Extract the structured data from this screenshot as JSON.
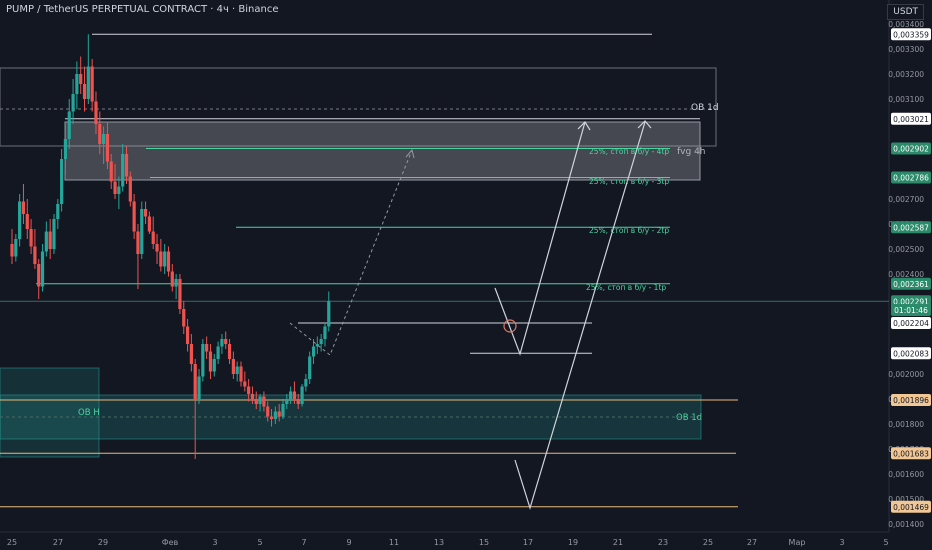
{
  "header": {
    "title": "PUMP / TetherUS PERPETUAL CONTRACT · 4ч · Binance",
    "currency_button": "USDT"
  },
  "colors": {
    "background": "#131722",
    "up": "#26a69a",
    "down": "#ef5350",
    "tp_line": "#4cd4a0",
    "level_orange": "#e8b97a",
    "white": "#d1d4dc",
    "zone_green": "#1e5c4c",
    "zone_grey": "#8a8d96"
  },
  "chart_data": {
    "type": "candlestick",
    "title": "PUMP / TetherUS PERPETUAL CONTRACT · 4ч · Binance",
    "x_tick_labels": [
      "25",
      "27",
      "29",
      "Фев",
      "3",
      "5",
      "7",
      "9",
      "11",
      "13",
      "15",
      "17",
      "19",
      "21",
      "23",
      "25",
      "27",
      "Мар",
      "3",
      "5"
    ],
    "y_axis_ticks": [
      "0,003400",
      "0,003300",
      "0,003200",
      "0,003100",
      "0,002700",
      "0,002600",
      "0,002500",
      "0,002400",
      "0,002000",
      "0,001900",
      "0,001800",
      "0,001700",
      "0,001600",
      "0,001500",
      "0,001400"
    ],
    "ylim": [
      0.00138,
      0.00342
    ],
    "price_labels": [
      {
        "text": "0,003359",
        "value": 0.003359,
        "style": "white"
      },
      {
        "text": "0,003021",
        "value": 0.003021,
        "style": "white"
      },
      {
        "text": "0,002902",
        "value": 0.002902,
        "style": "green"
      },
      {
        "text": "0,002786",
        "value": 0.002786,
        "style": "green"
      },
      {
        "text": "0,002587",
        "value": 0.002587,
        "style": "green"
      },
      {
        "text": "0,002361",
        "value": 0.002361,
        "style": "green"
      },
      {
        "text": "0,002291",
        "value": 0.002291,
        "style": "green"
      },
      {
        "text": "01:01:46",
        "value": 0.002256,
        "style": "green"
      },
      {
        "text": "0,002204",
        "value": 0.002204,
        "style": "white"
      },
      {
        "text": "0,002083",
        "value": 0.002083,
        "style": "white"
      },
      {
        "text": "0,001896",
        "value": 0.001896,
        "style": "orange"
      },
      {
        "text": "0,001683",
        "value": 0.001683,
        "style": "orange"
      },
      {
        "text": "0,001469",
        "value": 0.001469,
        "style": "orange"
      }
    ],
    "annotations": [
      "OB 1d",
      "fvg 4h",
      "25%, стоп в б/у - 4tp",
      "25%, стоп в б/у - 3tp",
      "25%, стоп в б/у - 2tp",
      "25%, стоп в б/у - 1tp",
      "OB H",
      "OB 1d"
    ],
    "candles": [
      {
        "d": 0,
        "o": 0.00252,
        "h": 0.00258,
        "l": 0.00244,
        "c": 0.00247
      },
      {
        "d": 0.167,
        "o": 0.00247,
        "h": 0.00256,
        "l": 0.00245,
        "c": 0.00254
      },
      {
        "d": 0.333,
        "o": 0.00254,
        "h": 0.00272,
        "l": 0.00251,
        "c": 0.00269
      },
      {
        "d": 0.5,
        "o": 0.00269,
        "h": 0.00276,
        "l": 0.0026,
        "c": 0.00264
      },
      {
        "d": 0.667,
        "o": 0.00264,
        "h": 0.0027,
        "l": 0.00254,
        "c": 0.00258
      },
      {
        "d": 0.833,
        "o": 0.00258,
        "h": 0.00262,
        "l": 0.00248,
        "c": 0.00251
      },
      {
        "d": 1.0,
        "o": 0.00251,
        "h": 0.00258,
        "l": 0.00242,
        "c": 0.00244
      },
      {
        "d": 1.167,
        "o": 0.00244,
        "h": 0.00246,
        "l": 0.0023,
        "c": 0.00235
      },
      {
        "d": 1.333,
        "o": 0.00235,
        "h": 0.00252,
        "l": 0.00233,
        "c": 0.00249
      },
      {
        "d": 1.5,
        "o": 0.00249,
        "h": 0.00261,
        "l": 0.00247,
        "c": 0.00257
      },
      {
        "d": 1.667,
        "o": 0.00257,
        "h": 0.00262,
        "l": 0.00246,
        "c": 0.0025
      },
      {
        "d": 1.833,
        "o": 0.0025,
        "h": 0.00264,
        "l": 0.00248,
        "c": 0.00262
      },
      {
        "d": 2.0,
        "o": 0.00262,
        "h": 0.0027,
        "l": 0.00258,
        "c": 0.00268
      },
      {
        "d": 2.167,
        "o": 0.00268,
        "h": 0.0029,
        "l": 0.00265,
        "c": 0.00286
      },
      {
        "d": 2.333,
        "o": 0.00286,
        "h": 0.003,
        "l": 0.0028,
        "c": 0.00294
      },
      {
        "d": 2.5,
        "o": 0.00294,
        "h": 0.0031,
        "l": 0.0029,
        "c": 0.00305
      },
      {
        "d": 2.667,
        "o": 0.00305,
        "h": 0.00318,
        "l": 0.003,
        "c": 0.00312
      },
      {
        "d": 2.833,
        "o": 0.00312,
        "h": 0.00325,
        "l": 0.00306,
        "c": 0.0032
      },
      {
        "d": 3.0,
        "o": 0.0032,
        "h": 0.00327,
        "l": 0.00312,
        "c": 0.00316
      },
      {
        "d": 3.167,
        "o": 0.00316,
        "h": 0.00323,
        "l": 0.00305,
        "c": 0.0031
      },
      {
        "d": 3.333,
        "o": 0.0031,
        "h": 0.003359,
        "l": 0.00308,
        "c": 0.00323
      },
      {
        "d": 3.5,
        "o": 0.00323,
        "h": 0.00326,
        "l": 0.00305,
        "c": 0.00309
      },
      {
        "d": 3.667,
        "o": 0.00309,
        "h": 0.00313,
        "l": 0.00296,
        "c": 0.003
      },
      {
        "d": 3.833,
        "o": 0.003,
        "h": 0.00305,
        "l": 0.00288,
        "c": 0.00292
      },
      {
        "d": 4.0,
        "o": 0.00292,
        "h": 0.00299,
        "l": 0.00284,
        "c": 0.00296
      },
      {
        "d": 4.167,
        "o": 0.00296,
        "h": 0.00301,
        "l": 0.00282,
        "c": 0.00285
      },
      {
        "d": 4.333,
        "o": 0.00285,
        "h": 0.00288,
        "l": 0.00274,
        "c": 0.00277
      },
      {
        "d": 4.5,
        "o": 0.00277,
        "h": 0.00284,
        "l": 0.0027,
        "c": 0.00272
      },
      {
        "d": 4.667,
        "o": 0.00272,
        "h": 0.00279,
        "l": 0.00266,
        "c": 0.00275
      },
      {
        "d": 4.833,
        "o": 0.00275,
        "h": 0.00292,
        "l": 0.00273,
        "c": 0.00288
      },
      {
        "d": 5.0,
        "o": 0.00288,
        "h": 0.00291,
        "l": 0.00276,
        "c": 0.00279
      },
      {
        "d": 5.167,
        "o": 0.00279,
        "h": 0.00281,
        "l": 0.00267,
        "c": 0.00269
      },
      {
        "d": 5.333,
        "o": 0.00269,
        "h": 0.00272,
        "l": 0.00254,
        "c": 0.00257
      },
      {
        "d": 5.5,
        "o": 0.00257,
        "h": 0.0026,
        "l": 0.00234,
        "c": 0.00248
      },
      {
        "d": 5.667,
        "o": 0.00248,
        "h": 0.00269,
        "l": 0.00246,
        "c": 0.00266
      },
      {
        "d": 5.833,
        "o": 0.00266,
        "h": 0.00269,
        "l": 0.0026,
        "c": 0.00263
      },
      {
        "d": 6.0,
        "o": 0.00263,
        "h": 0.00265,
        "l": 0.00256,
        "c": 0.00257
      },
      {
        "d": 6.167,
        "o": 0.00257,
        "h": 0.00263,
        "l": 0.0025,
        "c": 0.00252
      },
      {
        "d": 6.333,
        "o": 0.00252,
        "h": 0.00256,
        "l": 0.00244,
        "c": 0.00249
      },
      {
        "d": 6.5,
        "o": 0.00249,
        "h": 0.00254,
        "l": 0.00241,
        "c": 0.00243
      },
      {
        "d": 6.667,
        "o": 0.00243,
        "h": 0.00252,
        "l": 0.0024,
        "c": 0.00249
      },
      {
        "d": 6.833,
        "o": 0.00249,
        "h": 0.00251,
        "l": 0.00239,
        "c": 0.00241
      },
      {
        "d": 7.0,
        "o": 0.00241,
        "h": 0.00244,
        "l": 0.00233,
        "c": 0.00235
      },
      {
        "d": 7.167,
        "o": 0.00235,
        "h": 0.0024,
        "l": 0.0023,
        "c": 0.00238
      },
      {
        "d": 7.333,
        "o": 0.00238,
        "h": 0.0024,
        "l": 0.00224,
        "c": 0.00226
      },
      {
        "d": 7.5,
        "o": 0.00226,
        "h": 0.00229,
        "l": 0.00216,
        "c": 0.00219
      },
      {
        "d": 7.667,
        "o": 0.00219,
        "h": 0.00222,
        "l": 0.00209,
        "c": 0.00212
      },
      {
        "d": 7.833,
        "o": 0.00212,
        "h": 0.00216,
        "l": 0.00201,
        "c": 0.00204
      },
      {
        "d": 8.0,
        "o": 0.00204,
        "h": 0.00206,
        "l": 0.00166,
        "c": 0.0019
      },
      {
        "d": 8.167,
        "o": 0.0019,
        "h": 0.00202,
        "l": 0.00188,
        "c": 0.00199
      },
      {
        "d": 8.333,
        "o": 0.00199,
        "h": 0.00214,
        "l": 0.00197,
        "c": 0.00212
      },
      {
        "d": 8.5,
        "o": 0.00212,
        "h": 0.00215,
        "l": 0.00206,
        "c": 0.00209
      },
      {
        "d": 8.667,
        "o": 0.00209,
        "h": 0.00212,
        "l": 0.00198,
        "c": 0.00201
      },
      {
        "d": 8.833,
        "o": 0.00201,
        "h": 0.00208,
        "l": 0.00199,
        "c": 0.00206
      },
      {
        "d": 9.0,
        "o": 0.00206,
        "h": 0.00213,
        "l": 0.00204,
        "c": 0.00211
      },
      {
        "d": 9.167,
        "o": 0.00211,
        "h": 0.00216,
        "l": 0.00208,
        "c": 0.00214
      },
      {
        "d": 9.333,
        "o": 0.00214,
        "h": 0.00217,
        "l": 0.0021,
        "c": 0.00212
      },
      {
        "d": 9.5,
        "o": 0.00212,
        "h": 0.00214,
        "l": 0.00204,
        "c": 0.00206
      },
      {
        "d": 9.667,
        "o": 0.00206,
        "h": 0.00209,
        "l": 0.00198,
        "c": 0.002
      },
      {
        "d": 9.833,
        "o": 0.002,
        "h": 0.00205,
        "l": 0.00197,
        "c": 0.00203
      },
      {
        "d": 10.0,
        "o": 0.00203,
        "h": 0.00205,
        "l": 0.00195,
        "c": 0.00197
      },
      {
        "d": 10.167,
        "o": 0.00197,
        "h": 0.00201,
        "l": 0.00193,
        "c": 0.00195
      },
      {
        "d": 10.333,
        "o": 0.00195,
        "h": 0.00198,
        "l": 0.00189,
        "c": 0.00192
      },
      {
        "d": 10.5,
        "o": 0.00192,
        "h": 0.00195,
        "l": 0.00188,
        "c": 0.0019
      },
      {
        "d": 10.667,
        "o": 0.0019,
        "h": 0.00193,
        "l": 0.00186,
        "c": 0.00188
      },
      {
        "d": 10.833,
        "o": 0.00188,
        "h": 0.00192,
        "l": 0.00185,
        "c": 0.00191
      },
      {
        "d": 11.0,
        "o": 0.00191,
        "h": 0.00193,
        "l": 0.00185,
        "c": 0.00187
      },
      {
        "d": 11.167,
        "o": 0.00187,
        "h": 0.00189,
        "l": 0.00181,
        "c": 0.00183
      },
      {
        "d": 11.333,
        "o": 0.00183,
        "h": 0.00186,
        "l": 0.00179,
        "c": 0.00182
      },
      {
        "d": 11.5,
        "o": 0.00182,
        "h": 0.00187,
        "l": 0.0018,
        "c": 0.00185
      },
      {
        "d": 11.667,
        "o": 0.00185,
        "h": 0.00188,
        "l": 0.00181,
        "c": 0.00183
      },
      {
        "d": 11.833,
        "o": 0.00183,
        "h": 0.0019,
        "l": 0.00182,
        "c": 0.00188
      },
      {
        "d": 12.0,
        "o": 0.00188,
        "h": 0.00192,
        "l": 0.00186,
        "c": 0.0019
      },
      {
        "d": 12.167,
        "o": 0.0019,
        "h": 0.00195,
        "l": 0.00188,
        "c": 0.00193
      },
      {
        "d": 12.333,
        "o": 0.00193,
        "h": 0.00197,
        "l": 0.00188,
        "c": 0.0019
      },
      {
        "d": 12.5,
        "o": 0.0019,
        "h": 0.00192,
        "l": 0.00186,
        "c": 0.00188
      },
      {
        "d": 12.667,
        "o": 0.00188,
        "h": 0.00196,
        "l": 0.00187,
        "c": 0.00195
      },
      {
        "d": 12.833,
        "o": 0.00195,
        "h": 0.002,
        "l": 0.00193,
        "c": 0.00198
      },
      {
        "d": 13.0,
        "o": 0.00198,
        "h": 0.00209,
        "l": 0.00196,
        "c": 0.00207
      },
      {
        "d": 13.167,
        "o": 0.00207,
        "h": 0.00214,
        "l": 0.00204,
        "c": 0.00211
      },
      {
        "d": 13.333,
        "o": 0.00211,
        "h": 0.00215,
        "l": 0.00208,
        "c": 0.00212
      },
      {
        "d": 13.5,
        "o": 0.00212,
        "h": 0.00216,
        "l": 0.00209,
        "c": 0.00214
      },
      {
        "d": 13.667,
        "o": 0.00214,
        "h": 0.0022,
        "l": 0.00211,
        "c": 0.00219
      },
      {
        "d": 13.833,
        "o": 0.00219,
        "h": 0.00233,
        "l": 0.00217,
        "c": 0.002291
      }
    ]
  }
}
